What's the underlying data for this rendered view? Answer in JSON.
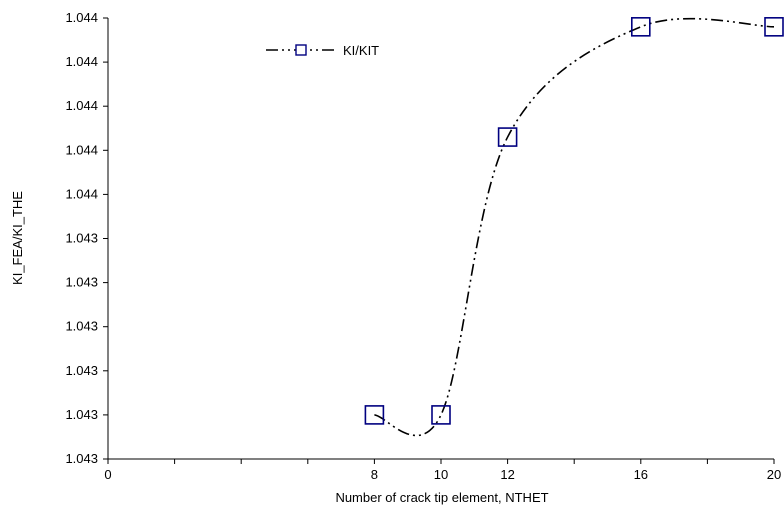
{
  "chart_data": {
    "type": "line",
    "title": "",
    "xlabel": "Number of crack tip element, NTHET",
    "ylabel": "KI_FEA/KI_THE",
    "x_ticks": [
      "0",
      "2",
      "4",
      "6",
      "8",
      "10",
      "12",
      "14",
      "16",
      "18",
      "20"
    ],
    "x_tick_labels": [
      "0",
      "8",
      "10",
      "12",
      "16",
      "20"
    ],
    "y_tick_labels": [
      "1.043",
      "1.043",
      "1.043",
      "1.043",
      "1.043",
      "1.043",
      "1.044",
      "1.044",
      "1.044",
      "1.044",
      "1.044"
    ],
    "xlim": [
      0,
      20
    ],
    "ylim": [
      1.0432,
      1.0442
    ],
    "grid": false,
    "legend_position": "top-left",
    "series": [
      {
        "name": "KI/KIT",
        "x": [
          8,
          10,
          12,
          16,
          20
        ],
        "values": [
          1.0433,
          1.0433,
          1.04393,
          1.04418,
          1.04418
        ],
        "color": "#000080",
        "line_style": "dash-dot-dot",
        "marker": "square"
      }
    ]
  }
}
